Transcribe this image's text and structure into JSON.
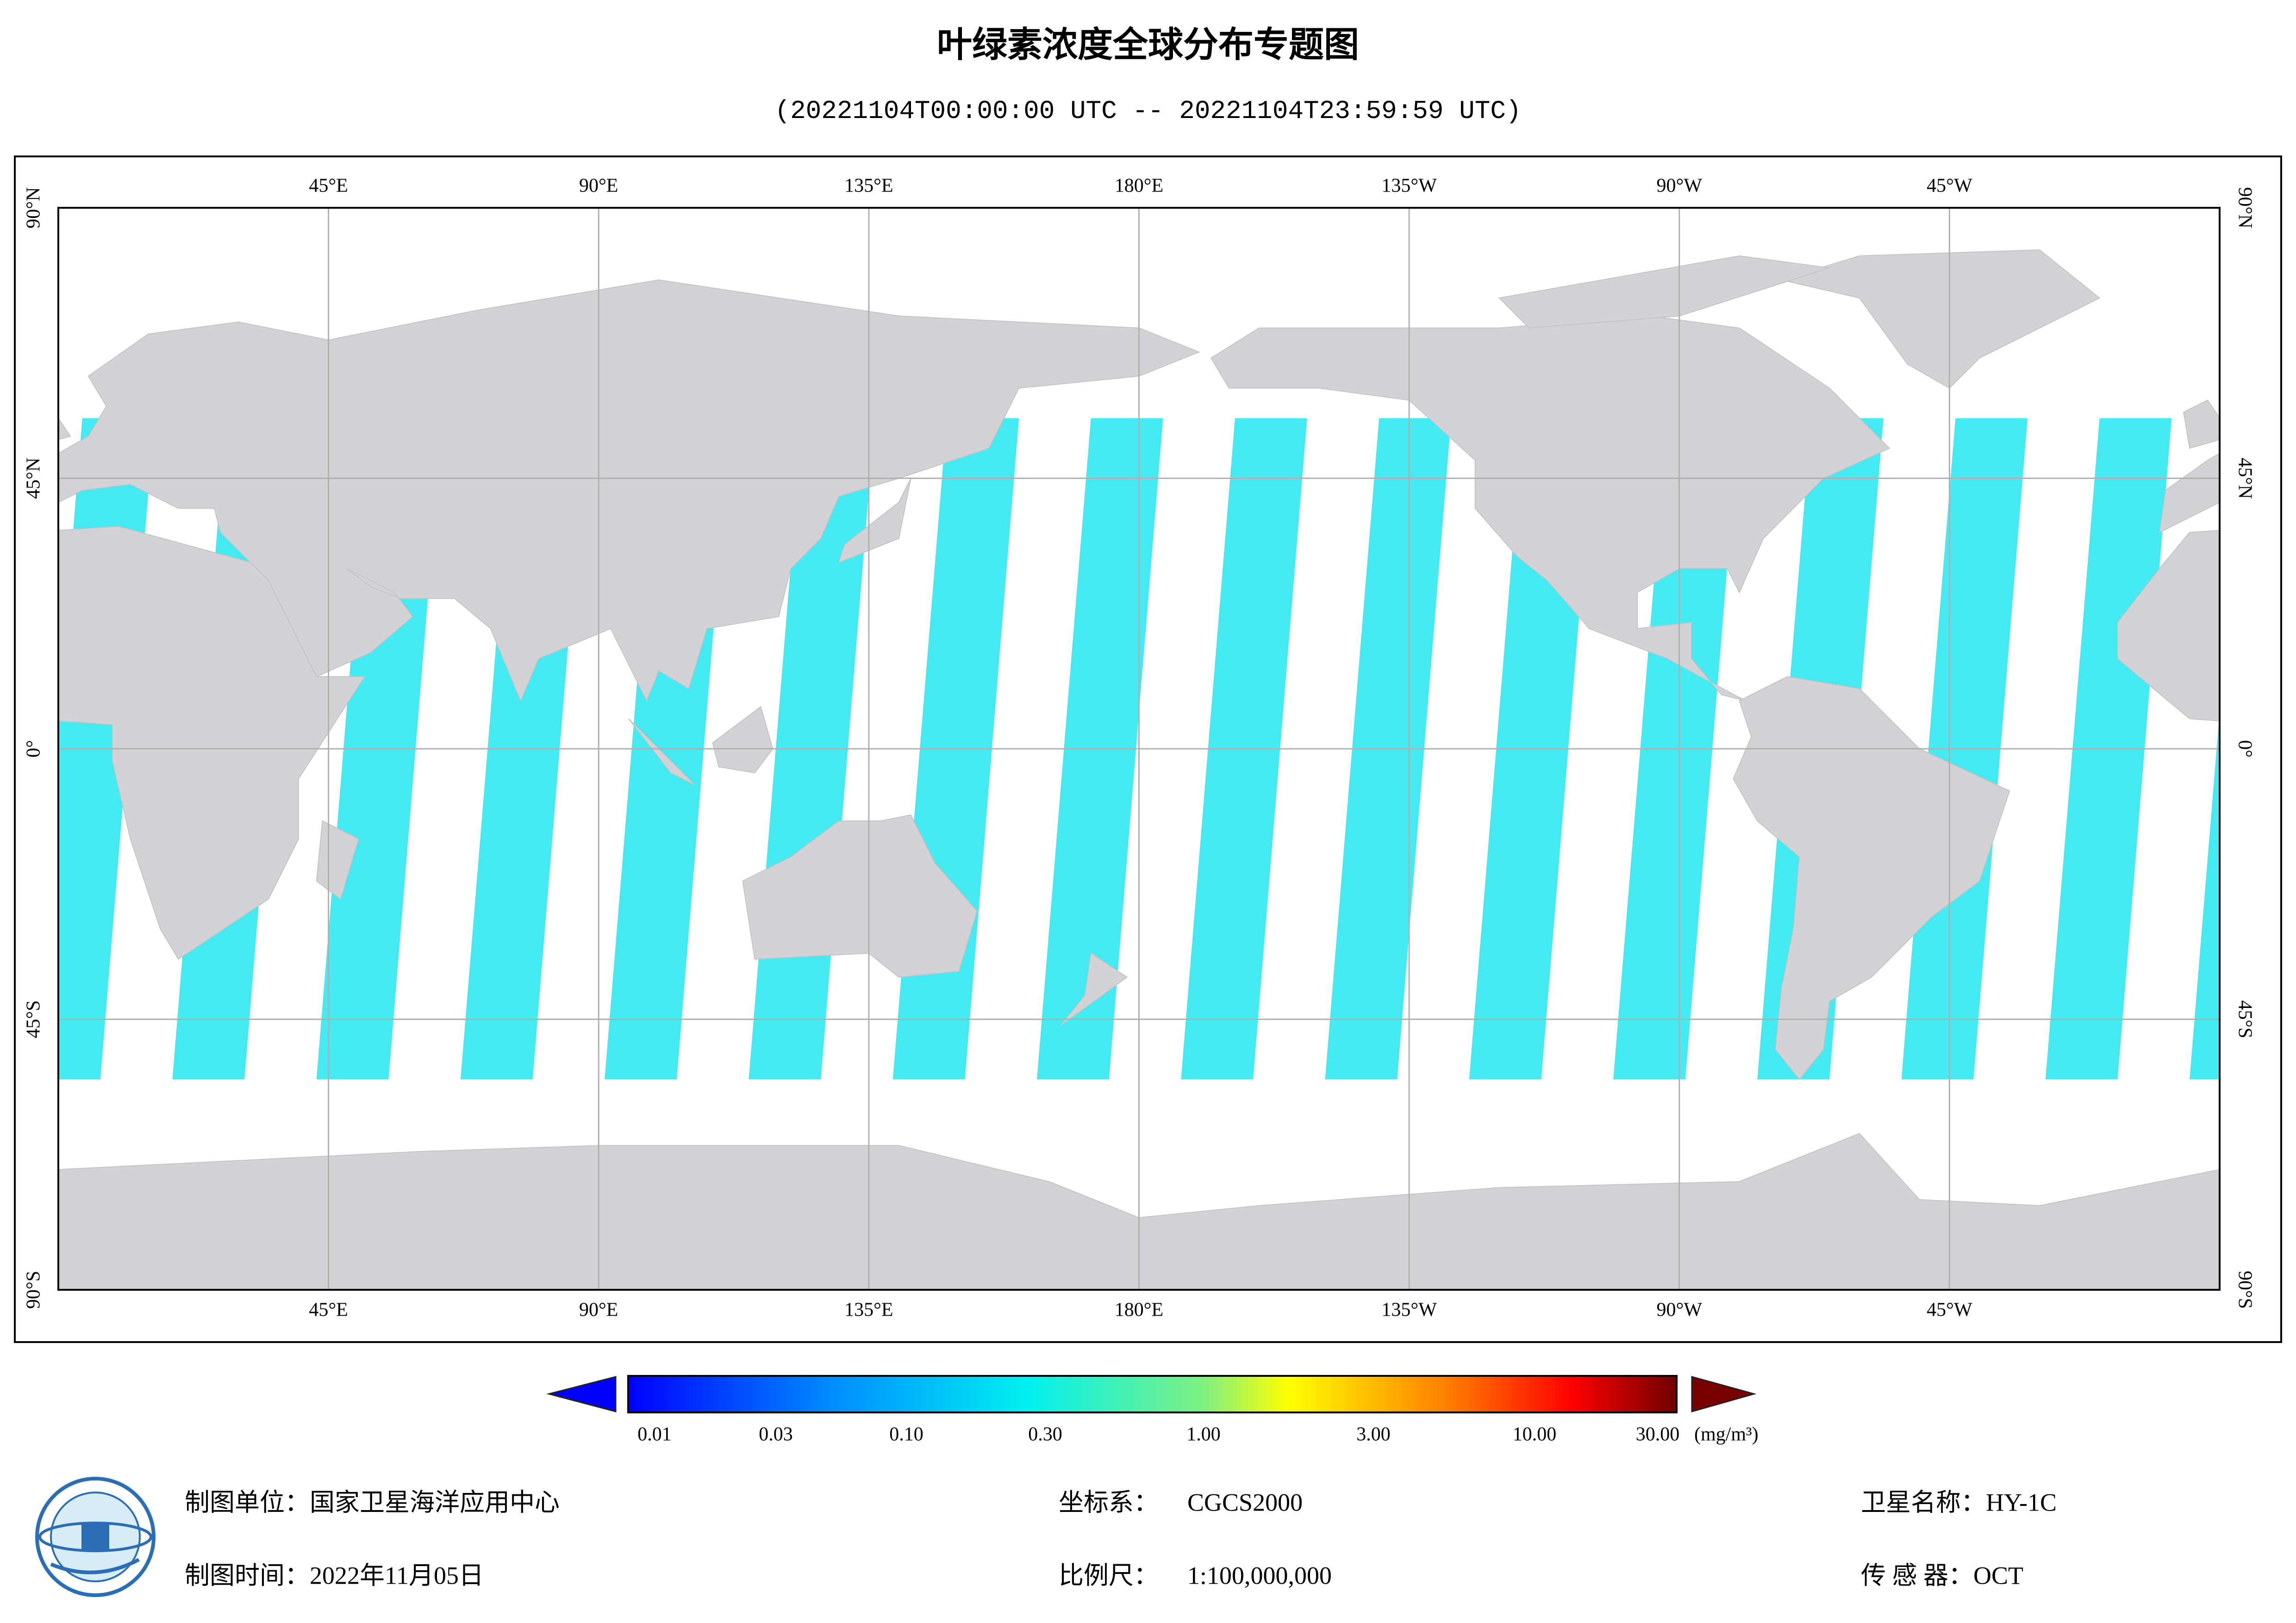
{
  "title": "叶绿素浓度全球分布专题图",
  "subtitle": "(20221104T00:00:00 UTC -- 20221104T23:59:59 UTC)",
  "map": {
    "lon_labels": [
      "45°E",
      "90°E",
      "135°E",
      "180°E",
      "135°W",
      "90°W",
      "45°W"
    ],
    "lat_labels": [
      "90°N",
      "45°N",
      "0°",
      "45°S",
      "90°S"
    ]
  },
  "colorbar": {
    "labels": [
      "0.01",
      "0.03",
      "0.10",
      "0.30",
      "1.00",
      "3.00",
      "10.00",
      "30.00"
    ],
    "unit": "(mg/m³)"
  },
  "footer": {
    "unit": "制图单位：国家卫星海洋应用中心",
    "time": "制图时间：2022年11月05日",
    "crs_label": "坐标系：",
    "crs_value": "CGCS2000",
    "scale_label": "比例尺：",
    "scale_value": "1:100,000,000",
    "satellite": "卫星名称：HY-1C",
    "sensor": "传 感 器：OCT"
  }
}
